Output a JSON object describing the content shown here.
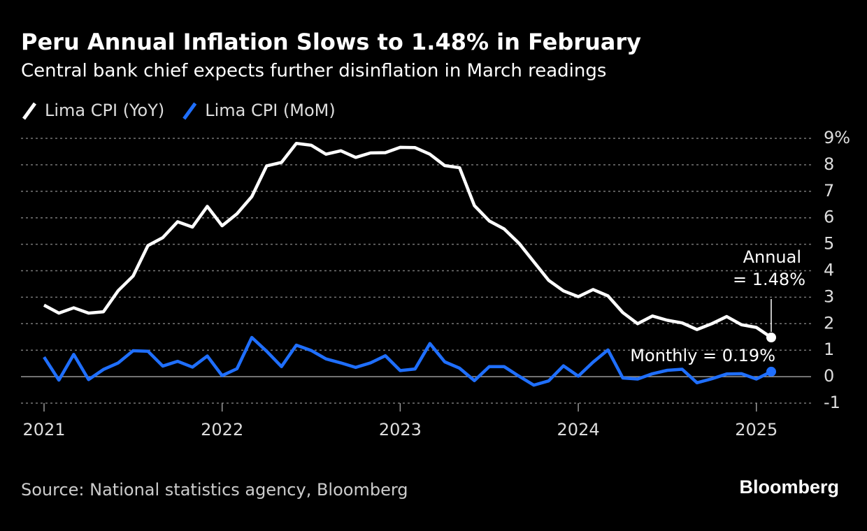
{
  "chart_data": {
    "type": "line",
    "title": "Peru Annual Inflation Slows to 1.48% in February",
    "subtitle": "Central bank chief expects further disinflation in March readings",
    "categories": [
      "2021",
      null,
      null,
      null,
      null,
      null,
      null,
      null,
      null,
      null,
      null,
      null,
      "2022",
      null,
      null,
      null,
      null,
      null,
      null,
      null,
      null,
      null,
      null,
      null,
      "2023",
      null,
      null,
      null,
      null,
      null,
      null,
      null,
      null,
      null,
      null,
      null,
      "2024",
      null,
      null,
      null,
      null,
      null,
      null,
      null,
      null,
      null,
      null,
      null,
      "2025",
      null
    ],
    "series": [
      {
        "name": "Lima CPI (YoY)",
        "color": "#ffffff",
        "values": [
          2.7,
          2.4,
          2.6,
          2.4,
          2.45,
          3.25,
          3.8,
          4.95,
          5.25,
          5.85,
          5.65,
          6.43,
          5.7,
          6.15,
          6.8,
          7.96,
          8.09,
          8.81,
          8.74,
          8.4,
          8.53,
          8.28,
          8.45,
          8.46,
          8.66,
          8.65,
          8.4,
          7.97,
          7.89,
          6.46,
          5.88,
          5.58,
          5.04,
          4.34,
          3.64,
          3.24,
          3.02,
          3.29,
          3.05,
          2.42,
          2.0,
          2.29,
          2.13,
          2.03,
          1.78,
          2.0,
          2.27,
          1.96,
          1.86,
          1.48
        ]
      },
      {
        "name": "Lima CPI (MoM)",
        "color": "#1f6fff",
        "values": [
          0.74,
          -0.13,
          0.84,
          -0.11,
          0.27,
          0.52,
          0.98,
          0.96,
          0.4,
          0.58,
          0.36,
          0.78,
          0.04,
          0.3,
          1.48,
          0.96,
          0.38,
          1.19,
          0.99,
          0.67,
          0.52,
          0.35,
          0.52,
          0.79,
          0.23,
          0.29,
          1.25,
          0.56,
          0.32,
          -0.15,
          0.38,
          0.38,
          0.02,
          -0.32,
          -0.16,
          0.41,
          0.02,
          0.55,
          1.01,
          -0.05,
          -0.09,
          0.11,
          0.24,
          0.28,
          -0.23,
          -0.08,
          0.1,
          0.11,
          -0.09,
          0.19
        ]
      }
    ],
    "ylim": [
      -1,
      9
    ],
    "yticks": [
      -1,
      0,
      1,
      2,
      3,
      4,
      5,
      6,
      7,
      8,
      {
        "value": 9,
        "label": "9%"
      }
    ],
    "grid": true,
    "annotations": [
      "Annual",
      "= 1.48%",
      "Monthly = 0.19%"
    ],
    "source": "Source: National statistics agency, Bloomberg",
    "brand": "Bloomberg"
  }
}
